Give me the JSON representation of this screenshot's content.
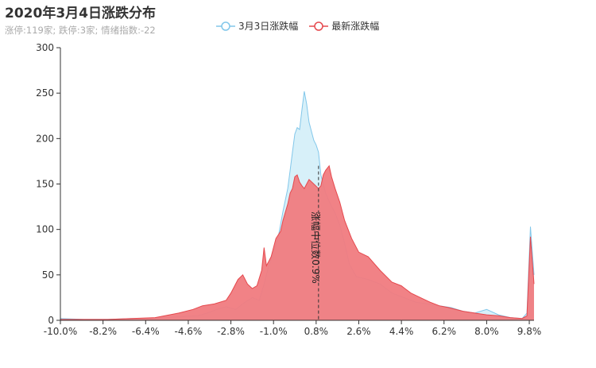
{
  "header": {
    "title": "2020年3月4日涨跌分布",
    "subtitle": "涨停:119家; 跌停:3家; 情绪指数:-22"
  },
  "legend": [
    {
      "name": "3月3日涨跌幅",
      "color": "#82c7ea"
    },
    {
      "name": "最新涨跌幅",
      "color": "#e5484d"
    }
  ],
  "colors": {
    "series_prev_fill": "#d3eef8",
    "series_prev_line": "#82c7ea",
    "series_latest_fill": "#f07b80",
    "series_latest_line": "#e5484d",
    "axis": "#333333",
    "text": "#333333"
  },
  "chart_data": {
    "type": "area",
    "xlim": [
      -10,
      10
    ],
    "ylim": [
      0,
      300
    ],
    "ytick_labels": [
      "0",
      "50",
      "100",
      "150",
      "200",
      "250",
      "300"
    ],
    "xtick_labels": [
      "-10.0%",
      "-8.2%",
      "-6.4%",
      "-4.6%",
      "-2.8%",
      "-1.0%",
      "0.8%",
      "2.6%",
      "4.4%",
      "6.2%",
      "8.0%",
      "9.8%"
    ],
    "median_line": {
      "x": 0.9,
      "label": "涨幅中位数0.9%"
    },
    "series": [
      {
        "name": "3月3日涨跌幅",
        "points": [
          [
            -10,
            2
          ],
          [
            -9,
            1
          ],
          [
            -8,
            1
          ],
          [
            -7,
            2
          ],
          [
            -6,
            2
          ],
          [
            -5,
            4
          ],
          [
            -4.2,
            5
          ],
          [
            -3.8,
            8
          ],
          [
            -3.4,
            12
          ],
          [
            -3,
            15
          ],
          [
            -2.6,
            12
          ],
          [
            -2.2,
            20
          ],
          [
            -1.9,
            25
          ],
          [
            -1.6,
            22
          ],
          [
            -1.4,
            40
          ],
          [
            -1.2,
            60
          ],
          [
            -1,
            75
          ],
          [
            -0.8,
            92
          ],
          [
            -0.6,
            120
          ],
          [
            -0.4,
            145
          ],
          [
            -0.3,
            165
          ],
          [
            -0.2,
            185
          ],
          [
            -0.1,
            205
          ],
          [
            0,
            212
          ],
          [
            0.1,
            210
          ],
          [
            0.2,
            232
          ],
          [
            0.3,
            252
          ],
          [
            0.4,
            238
          ],
          [
            0.5,
            218
          ],
          [
            0.6,
            208
          ],
          [
            0.7,
            198
          ],
          [
            0.8,
            193
          ],
          [
            0.9,
            185
          ],
          [
            1,
            160
          ],
          [
            1.2,
            140
          ],
          [
            1.4,
            128
          ],
          [
            1.6,
            118
          ],
          [
            1.8,
            105
          ],
          [
            2,
            85
          ],
          [
            2.2,
            62
          ],
          [
            2.5,
            48
          ],
          [
            3,
            45
          ],
          [
            3.5,
            40
          ],
          [
            4,
            30
          ],
          [
            4.5,
            25
          ],
          [
            5,
            20
          ],
          [
            5.5,
            18
          ],
          [
            6,
            16
          ],
          [
            6.5,
            14
          ],
          [
            7,
            10
          ],
          [
            7.5,
            8
          ],
          [
            8,
            12
          ],
          [
            8.5,
            6
          ],
          [
            9,
            3
          ],
          [
            9.5,
            2
          ],
          [
            9.7,
            8
          ],
          [
            9.85,
            103
          ],
          [
            10,
            50
          ]
        ]
      },
      {
        "name": "最新涨跌幅",
        "points": [
          [
            -10,
            1
          ],
          [
            -9,
            1
          ],
          [
            -8,
            1
          ],
          [
            -7,
            2
          ],
          [
            -6,
            3
          ],
          [
            -5,
            8
          ],
          [
            -4.4,
            12
          ],
          [
            -4,
            16
          ],
          [
            -3.5,
            18
          ],
          [
            -3,
            22
          ],
          [
            -2.8,
            30
          ],
          [
            -2.5,
            45
          ],
          [
            -2.3,
            50
          ],
          [
            -2.1,
            40
          ],
          [
            -1.9,
            35
          ],
          [
            -1.7,
            38
          ],
          [
            -1.5,
            55
          ],
          [
            -1.4,
            80
          ],
          [
            -1.3,
            60
          ],
          [
            -1.1,
            70
          ],
          [
            -0.9,
            90
          ],
          [
            -0.7,
            98
          ],
          [
            -0.6,
            110
          ],
          [
            -0.4,
            128
          ],
          [
            -0.3,
            140
          ],
          [
            -0.2,
            145
          ],
          [
            -0.1,
            158
          ],
          [
            0,
            160
          ],
          [
            0.1,
            152
          ],
          [
            0.2,
            148
          ],
          [
            0.3,
            145
          ],
          [
            0.4,
            150
          ],
          [
            0.5,
            155
          ],
          [
            0.7,
            150
          ],
          [
            0.9,
            145
          ],
          [
            1,
            148
          ],
          [
            1.1,
            160
          ],
          [
            1.2,
            165
          ],
          [
            1.35,
            170
          ],
          [
            1.45,
            158
          ],
          [
            1.6,
            145
          ],
          [
            1.8,
            130
          ],
          [
            2,
            110
          ],
          [
            2.3,
            90
          ],
          [
            2.6,
            75
          ],
          [
            3,
            70
          ],
          [
            3.5,
            55
          ],
          [
            4,
            42
          ],
          [
            4.4,
            38
          ],
          [
            4.8,
            30
          ],
          [
            5.2,
            25
          ],
          [
            5.6,
            20
          ],
          [
            6,
            16
          ],
          [
            6.4,
            14
          ],
          [
            7,
            10
          ],
          [
            7.5,
            8
          ],
          [
            8,
            6
          ],
          [
            8.5,
            5
          ],
          [
            9,
            3
          ],
          [
            9.5,
            2
          ],
          [
            9.7,
            5
          ],
          [
            9.85,
            92
          ],
          [
            10,
            40
          ]
        ]
      }
    ]
  }
}
